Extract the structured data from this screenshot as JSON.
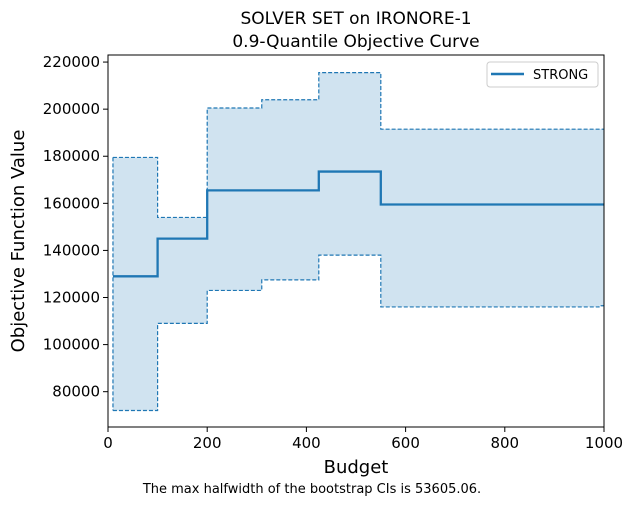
{
  "chart_data": {
    "type": "line",
    "title_line1": "SOLVER SET on IRONORE-1",
    "title_line2": "0.9-Quantile Objective Curve",
    "xlabel": "Budget",
    "ylabel": "Objective Function Value",
    "xlim": [
      0,
      1000
    ],
    "ylim": [
      65000,
      223000
    ],
    "xticks": [
      0,
      200,
      400,
      600,
      800,
      1000
    ],
    "xtick_labels": [
      "0",
      "200",
      "400",
      "600",
      "800",
      "1000"
    ],
    "yticks": [
      80000,
      100000,
      120000,
      140000,
      160000,
      180000,
      200000,
      220000
    ],
    "ytick_labels": [
      "80000",
      "100000",
      "120000",
      "140000",
      "160000",
      "180000",
      "200000",
      "220000"
    ],
    "grid": false,
    "legend_position": "top-right",
    "series": [
      {
        "name": "STRONG",
        "color": "#1f77b4",
        "style": "step",
        "x": [
          10,
          100,
          100,
          200,
          200,
          425,
          425,
          550,
          550,
          1000
        ],
        "y": [
          129000,
          129000,
          145000,
          145000,
          165500,
          165500,
          173500,
          173500,
          159500,
          159500
        ]
      }
    ],
    "ci_band": {
      "color": "#1f77b4",
      "fill": "#d0e3f0",
      "upper": {
        "x": [
          10,
          100,
          100,
          200,
          200,
          310,
          310,
          425,
          425,
          550,
          550,
          1000
        ],
        "y": [
          179500,
          179500,
          154000,
          154000,
          200500,
          200500,
          204000,
          204000,
          215500,
          215500,
          191500,
          191500
        ]
      },
      "lower": {
        "x": [
          10,
          100,
          100,
          200,
          200,
          310,
          310,
          425,
          425,
          550,
          550,
          990,
          990,
          1000
        ],
        "y": [
          72000,
          72000,
          109000,
          109000,
          123000,
          123000,
          127500,
          127500,
          138000,
          138000,
          116000,
          116000,
          116500,
          116500
        ]
      }
    },
    "footnote": "The max halfwidth of the bootstrap CIs is 53605.06."
  }
}
